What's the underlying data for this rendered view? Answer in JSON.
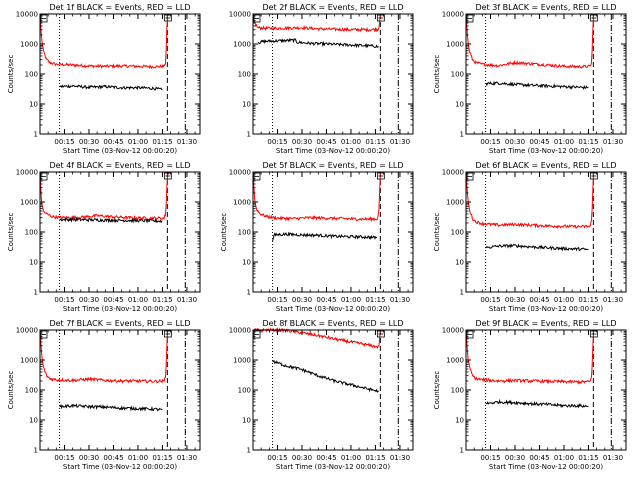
{
  "figure": {
    "time_ticks": [
      "00:15",
      "00:30",
      "00:45",
      "01:00",
      "01:15",
      "01:30"
    ],
    "y_ticks": [
      "1",
      "10",
      "100",
      "1000",
      "10000"
    ],
    "y_label": "Counts/sec",
    "x_label": "Start Time (03-Nov-12 00:00:20)",
    "series_colors": {
      "events": "#000000",
      "lld": "#ff0000"
    }
  },
  "chart_data": [
    {
      "type": "line",
      "title": "Det 1f BLACK = Events, RED = LLD",
      "xlabel": "Start Time (03-Nov-12 00:00:20)",
      "ylabel": "Counts/sec",
      "x_unit": "minutes after start",
      "xlim": [
        0,
        98
      ],
      "ylim": [
        1,
        10000
      ],
      "y_scale": "log",
      "markers": {
        "dotted": 12,
        "dashed": 78,
        "dashdot": 89
      },
      "series": [
        {
          "color": "#ff0000",
          "t": [
            0,
            1,
            2,
            4,
            6,
            10,
            20,
            30,
            40,
            50,
            60,
            70,
            76,
            77,
            78,
            79
          ],
          "values": [
            9000,
            1500,
            600,
            300,
            240,
            210,
            200,
            185,
            180,
            185,
            180,
            175,
            180,
            250,
            9000,
            9500
          ]
        },
        {
          "color": "#000000",
          "t": [
            12,
            20,
            30,
            40,
            50,
            60,
            70,
            75
          ],
          "values": [
            38,
            40,
            36,
            38,
            35,
            35,
            33,
            30
          ]
        }
      ]
    },
    {
      "type": "line",
      "title": "Det 2f BLACK = Events, RED = LLD",
      "xlabel": "Start Time (03-Nov-12 00:00:20)",
      "ylabel": "",
      "x_unit": "minutes after start",
      "xlim": [
        0,
        98
      ],
      "ylim": [
        1,
        10000
      ],
      "y_scale": "log",
      "markers": {
        "dotted": 12,
        "dashed": 78,
        "dashdot": 89
      },
      "series": [
        {
          "color": "#ff0000",
          "t": [
            0,
            1,
            3,
            10,
            20,
            30,
            40,
            50,
            60,
            70,
            77,
            78
          ],
          "values": [
            8000,
            5000,
            3500,
            3300,
            3400,
            3500,
            3200,
            3100,
            3000,
            3000,
            3100,
            9000
          ]
        },
        {
          "color": "#000000",
          "t": [
            3,
            6,
            10,
            20,
            26,
            27,
            35,
            45,
            55,
            65,
            75,
            77
          ],
          "values": [
            1100,
            1200,
            1250,
            1300,
            1350,
            1150,
            1050,
            1000,
            950,
            900,
            850,
            800
          ]
        }
      ]
    },
    {
      "type": "line",
      "title": "Det 3f BLACK = Events, RED = LLD",
      "xlabel": "Start Time (03-Nov-12 00:00:20)",
      "ylabel": "Counts/sec",
      "x_unit": "minutes after start",
      "xlim": [
        0,
        98
      ],
      "ylim": [
        1,
        10000
      ],
      "y_scale": "log",
      "markers": {
        "dotted": 12,
        "dashed": 78,
        "dashdot": 89
      },
      "series": [
        {
          "color": "#ff0000",
          "t": [
            0,
            1,
            2,
            4,
            6,
            10,
            20,
            30,
            40,
            50,
            60,
            70,
            76,
            77,
            78,
            79
          ],
          "values": [
            9000,
            1500,
            600,
            300,
            240,
            210,
            190,
            240,
            220,
            200,
            180,
            175,
            180,
            250,
            9000,
            9500
          ]
        },
        {
          "color": "#000000",
          "t": [
            12,
            20,
            30,
            40,
            50,
            60,
            70,
            75
          ],
          "values": [
            48,
            50,
            45,
            42,
            40,
            38,
            36,
            35
          ]
        }
      ]
    },
    {
      "type": "line",
      "title": "Det 4f BLACK = Events, RED = LLD",
      "xlabel": "Start Time (03-Nov-12 00:00:20)",
      "ylabel": "Counts/sec",
      "x_unit": "minutes after start",
      "xlim": [
        0,
        98
      ],
      "ylim": [
        1,
        10000
      ],
      "y_scale": "log",
      "markers": {
        "dotted": 12,
        "dashed": 78,
        "dashdot": 89
      },
      "series": [
        {
          "color": "#ff0000",
          "t": [
            0,
            1,
            2,
            4,
            8,
            15,
            25,
            35,
            45,
            55,
            65,
            76,
            77,
            78,
            79
          ],
          "values": [
            9000,
            1000,
            500,
            400,
            320,
            300,
            310,
            350,
            320,
            300,
            290,
            290,
            400,
            8000,
            9000
          ]
        },
        {
          "color": "#000000",
          "t": [
            12,
            20,
            30,
            40,
            50,
            60,
            70,
            75
          ],
          "values": [
            260,
            260,
            255,
            250,
            245,
            240,
            235,
            230
          ]
        }
      ]
    },
    {
      "type": "line",
      "title": "Det 5f BLACK = Events, RED = LLD",
      "xlabel": "Start Time (03-Nov-12 00:00:20)",
      "ylabel": "Counts/sec",
      "x_unit": "minutes after start",
      "xlim": [
        0,
        98
      ],
      "ylim": [
        1,
        10000
      ],
      "y_scale": "log",
      "markers": {
        "dotted": 12,
        "dashed": 78,
        "dashdot": 89
      },
      "series": [
        {
          "color": "#ff0000",
          "t": [
            0,
            1,
            2,
            4,
            8,
            15,
            25,
            35,
            45,
            55,
            65,
            76,
            77,
            78
          ],
          "values": [
            9000,
            1200,
            600,
            420,
            330,
            290,
            280,
            300,
            290,
            280,
            270,
            270,
            400,
            9000
          ]
        },
        {
          "color": "#000000",
          "t": [
            12,
            13,
            20,
            30,
            40,
            50,
            60,
            70,
            76
          ],
          "values": [
            50,
            80,
            85,
            80,
            78,
            72,
            70,
            68,
            65
          ]
        }
      ]
    },
    {
      "type": "line",
      "title": "Det 6f BLACK = Events, RED = LLD",
      "xlabel": "Start Time (03-Nov-12 00:00:20)",
      "ylabel": "Counts/sec",
      "x_unit": "minutes after start",
      "xlim": [
        0,
        98
      ],
      "ylim": [
        1,
        10000
      ],
      "y_scale": "log",
      "markers": {
        "dotted": 12,
        "dashed": 78,
        "dashdot": 89
      },
      "series": [
        {
          "color": "#ff0000",
          "t": [
            0,
            1,
            2,
            4,
            6,
            10,
            20,
            30,
            40,
            50,
            60,
            70,
            76,
            77,
            78,
            79
          ],
          "values": [
            9000,
            1500,
            600,
            280,
            220,
            190,
            170,
            180,
            170,
            160,
            155,
            150,
            155,
            250,
            9000,
            9500
          ]
        },
        {
          "color": "#000000",
          "t": [
            12,
            20,
            30,
            40,
            50,
            60,
            70,
            75
          ],
          "values": [
            30,
            34,
            35,
            32,
            30,
            28,
            27,
            26
          ]
        }
      ]
    },
    {
      "type": "line",
      "title": "Det 7f BLACK = Events, RED = LLD",
      "xlabel": "Start Time (03-Nov-12 00:00:20)",
      "ylabel": "Counts/sec",
      "x_unit": "minutes after start",
      "xlim": [
        0,
        98
      ],
      "ylim": [
        1,
        10000
      ],
      "y_scale": "log",
      "markers": {
        "dotted": 12,
        "dashed": 78,
        "dashdot": 89
      },
      "series": [
        {
          "color": "#ff0000",
          "t": [
            0,
            1,
            2,
            4,
            6,
            10,
            20,
            30,
            40,
            50,
            60,
            70,
            76,
            77,
            78,
            79
          ],
          "values": [
            9000,
            1500,
            600,
            300,
            240,
            220,
            210,
            230,
            210,
            200,
            200,
            195,
            200,
            300,
            9000,
            9500
          ]
        },
        {
          "color": "#000000",
          "t": [
            12,
            20,
            30,
            40,
            50,
            60,
            70,
            75
          ],
          "values": [
            28,
            30,
            28,
            27,
            25,
            24,
            23,
            22
          ]
        }
      ]
    },
    {
      "type": "line",
      "title": "Det 8f BLACK = Events, RED = LLD",
      "xlabel": "Start Time (03-Nov-12 00:00:20)",
      "ylabel": "",
      "x_unit": "minutes after start",
      "xlim": [
        0,
        98
      ],
      "ylim": [
        1,
        10000
      ],
      "y_scale": "log",
      "markers": {
        "dotted": 12,
        "dashed": 78,
        "dashdot": 89
      },
      "series": [
        {
          "color": "#ff0000",
          "t": [
            0,
            1,
            3,
            10,
            20,
            30,
            40,
            50,
            60,
            70,
            77,
            78
          ],
          "values": [
            10000,
            10000,
            10000,
            10000,
            9800,
            8000,
            6500,
            5000,
            4000,
            3200,
            2700,
            9000
          ]
        },
        {
          "color": "#000000",
          "t": [
            12,
            15,
            20,
            30,
            40,
            50,
            60,
            70,
            77
          ],
          "values": [
            900,
            800,
            650,
            480,
            300,
            200,
            150,
            110,
            90
          ]
        }
      ]
    },
    {
      "type": "line",
      "title": "Det 9f BLACK = Events, RED = LLD",
      "xlabel": "Start Time (03-Nov-12 00:00:20)",
      "ylabel": "Counts/sec",
      "x_unit": "minutes after start",
      "xlim": [
        0,
        98
      ],
      "ylim": [
        1,
        10000
      ],
      "y_scale": "log",
      "markers": {
        "dotted": 12,
        "dashed": 78,
        "dashdot": 89
      },
      "series": [
        {
          "color": "#ff0000",
          "t": [
            0,
            1,
            2,
            4,
            6,
            10,
            20,
            30,
            40,
            50,
            60,
            70,
            76,
            77,
            78,
            79
          ],
          "values": [
            9000,
            1500,
            600,
            300,
            240,
            220,
            200,
            210,
            200,
            195,
            190,
            185,
            190,
            280,
            9000,
            9500
          ]
        },
        {
          "color": "#000000",
          "t": [
            12,
            20,
            30,
            40,
            50,
            60,
            70,
            75
          ],
          "values": [
            35,
            40,
            38,
            35,
            33,
            30,
            30,
            28
          ]
        }
      ]
    }
  ]
}
